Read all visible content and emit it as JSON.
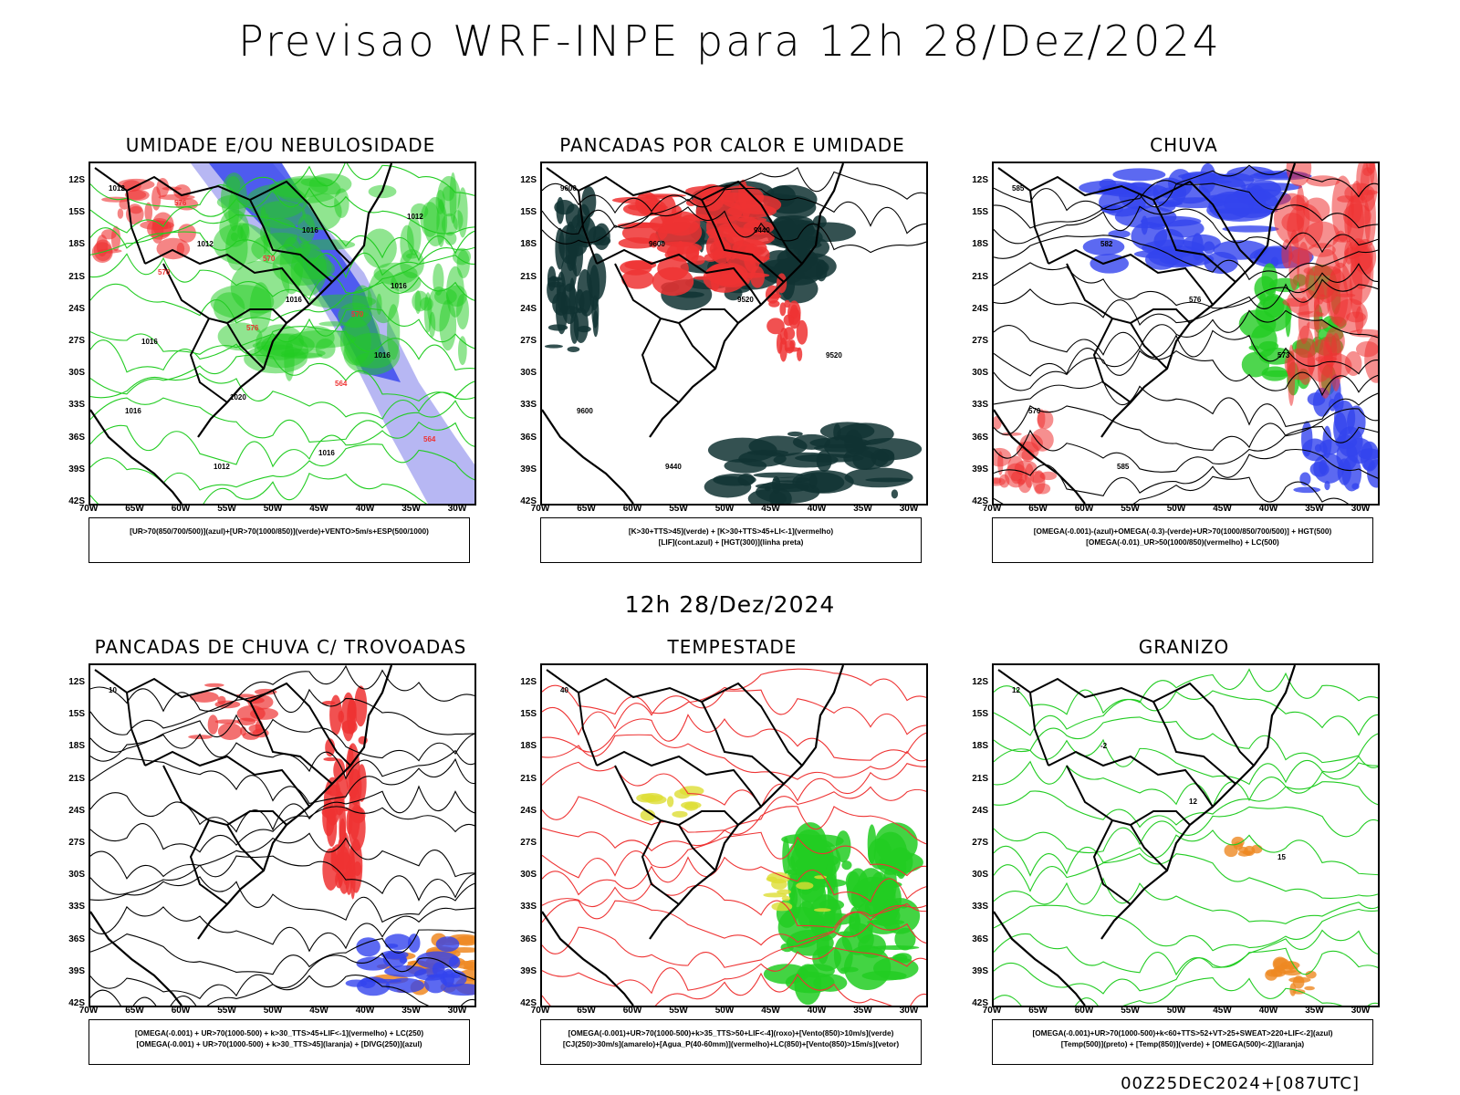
{
  "header": {
    "title": "Previsao WRF-INPE  para 12h 28/Dez/2024"
  },
  "middle_title": "12h 28/Dez/2024",
  "footer": "00Z25DEC2024+[087UTC]",
  "axes": {
    "lat_labels": [
      "12S",
      "15S",
      "18S",
      "21S",
      "24S",
      "27S",
      "30S",
      "33S",
      "36S",
      "39S",
      "42S"
    ],
    "lon_labels": [
      "70W",
      "65W",
      "60W",
      "55W",
      "50W",
      "45W",
      "40W",
      "35W",
      "30W"
    ]
  },
  "colors": {
    "blue": "#3344ee",
    "lightblue": "#9999ee",
    "green": "#22cc22",
    "red": "#ee3333",
    "orange": "#ee8822",
    "darkgreen": "#113333",
    "yellow": "#dddd33"
  },
  "panels": [
    {
      "title": "UMIDADE E/OU NEBULOSIDADE",
      "legend": [
        "[UR>70(850/700/500)](azul)+[UR>70(1000/850)](verde)+VENTO>5m/s+ESP(500/1000)"
      ],
      "labels": [
        "1012",
        "1012",
        "1016",
        "1016",
        "1016",
        "1012",
        "1016",
        "1016",
        "1016",
        "1020",
        "1016",
        "1012",
        "570",
        "576",
        "564",
        "564",
        "576",
        "570",
        "570"
      ]
    },
    {
      "title": "PANCADAS POR CALOR E UMIDADE",
      "legend": [
        "[K>30+TTS>45](verde) + [K>30+TTS>45+LI<-1](vermelho)",
        "[LIF](cont.azul) + [HGT(300)](linha preta)"
      ],
      "labels": [
        "9600",
        "9600",
        "9520",
        "9520",
        "9600",
        "9440",
        "9440"
      ]
    },
    {
      "title": "CHUVA",
      "legend": [
        "[OMEGA(-0.001)-(azul)+OMEGA(-0.3)-(verde)+UR>70(1000/850/700/500)] + HGT(500)",
        "[OMEGA(-0.01)_UR>50(1000/850)(vermelho) + LC(500)"
      ],
      "labels": [
        "585",
        "582",
        "576",
        "573",
        "570",
        "585"
      ]
    },
    {
      "title": "PANCADAS DE CHUVA C/ TROVOADAS",
      "legend": [
        "[OMEGA(-0.001) + UR>70(1000-500) + k>30_TTS>45+LIF<-1](vermelho) + LC(250)",
        "[OMEGA(-0.001) + UR>70(1000-500) + k>30_TTS>45](laranja) + [DIVG(250)](azul)"
      ],
      "labels": [
        "10"
      ]
    },
    {
      "title": "TEMPESTADE",
      "legend": [
        "[OMEGA(-0.001)+UR>70(1000-500)+k>35_TTS>50+LIF<-4](roxo)+[Vento(850)>10m/s](verde)",
        "[CJ(250)>30m/s](amarelo)+[Agua_P(40-60mm)](vermelho)+LC(850)+[Vento(850)>15m/s](vetor)"
      ],
      "labels": [
        "40"
      ]
    },
    {
      "title": "GRANIZO",
      "legend": [
        "[OMEGA(-0.001)+UR>70(1000-500)+k<60+TTS>52+VT>25+SWEAT>220+LIF<-2](azul)",
        "[Temp(500)](preto) + [Temp(850)](verde) + [OMEGA(500)<-2](laranja)"
      ],
      "labels": [
        "12",
        "-2",
        "12",
        "15"
      ]
    }
  ]
}
